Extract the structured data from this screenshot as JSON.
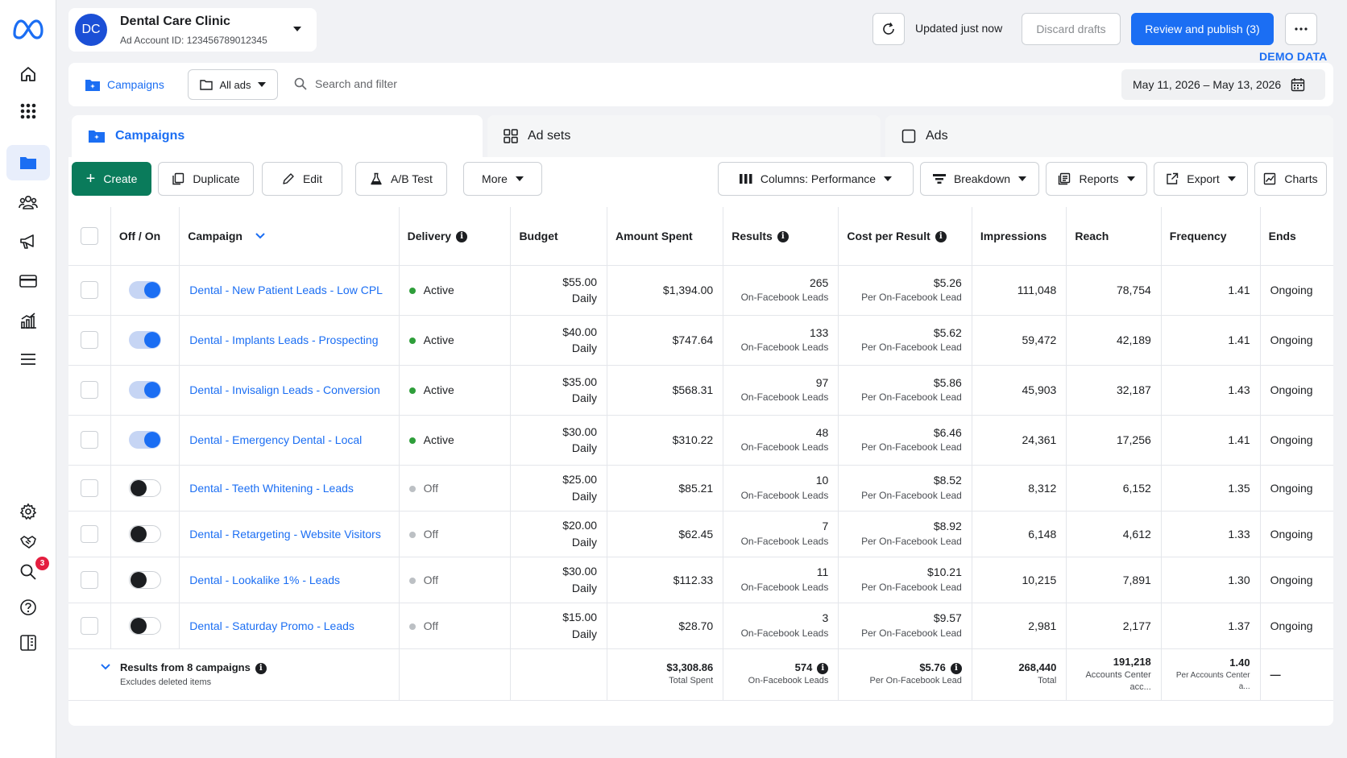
{
  "account": {
    "initials": "DC",
    "name": "Dental Care Clinic",
    "id_text": "Ad Account ID: 123456789012345"
  },
  "header": {
    "updated": "Updated just now",
    "discard": "Discard drafts",
    "publish": "Review and publish (3)",
    "demo": "DEMO DATA"
  },
  "filterbar": {
    "campaigns": "Campaigns",
    "all_ads": "All ads",
    "search_placeholder": "Search and filter",
    "date_range": "May 11, 2026 – May 13, 2026"
  },
  "tabs": {
    "campaigns": "Campaigns",
    "adsets": "Ad sets",
    "ads": "Ads"
  },
  "toolbar": {
    "create": "Create",
    "duplicate": "Duplicate",
    "edit": "Edit",
    "ab_test": "A/B Test",
    "more": "More",
    "columns": "Columns: Performance",
    "breakdown": "Breakdown",
    "reports": "Reports",
    "export": "Export",
    "charts": "Charts"
  },
  "columns": {
    "offon": "Off / On",
    "campaign": "Campaign",
    "delivery": "Delivery",
    "budget": "Budget",
    "spent": "Amount Spent",
    "results": "Results",
    "cpr": "Cost per Result",
    "impressions": "Impressions",
    "reach": "Reach",
    "frequency": "Frequency",
    "ends": "Ends"
  },
  "colors": {
    "accent": "#1b6ef3",
    "create": "#0a7b5b",
    "active_dot": "#2e9e3a",
    "off_dot": "#bcc0c4"
  },
  "rows": [
    {
      "on": true,
      "name": "Dental - New Patient Leads - Low CPL",
      "delivery": "Active",
      "budget": "$55.00",
      "budget_sub": "Daily",
      "spent": "$1,394.00",
      "results": "265",
      "results_sub": "On-Facebook Leads",
      "cpr": "$5.26",
      "cpr_sub": "Per On-Facebook Lead",
      "impressions": "111,048",
      "reach": "78,754",
      "frequency": "1.41",
      "ends": "Ongoing"
    },
    {
      "on": true,
      "name": "Dental - Implants Leads - Prospecting",
      "delivery": "Active",
      "budget": "$40.00",
      "budget_sub": "Daily",
      "spent": "$747.64",
      "results": "133",
      "results_sub": "On-Facebook Leads",
      "cpr": "$5.62",
      "cpr_sub": "Per On-Facebook Lead",
      "impressions": "59,472",
      "reach": "42,189",
      "frequency": "1.41",
      "ends": "Ongoing"
    },
    {
      "on": true,
      "name": "Dental - Invisalign Leads - Conversion",
      "delivery": "Active",
      "budget": "$35.00",
      "budget_sub": "Daily",
      "spent": "$568.31",
      "results": "97",
      "results_sub": "On-Facebook Leads",
      "cpr": "$5.86",
      "cpr_sub": "Per On-Facebook Lead",
      "impressions": "45,903",
      "reach": "32,187",
      "frequency": "1.43",
      "ends": "Ongoing"
    },
    {
      "on": true,
      "name": "Dental - Emergency Dental - Local",
      "delivery": "Active",
      "budget": "$30.00",
      "budget_sub": "Daily",
      "spent": "$310.22",
      "results": "48",
      "results_sub": "On-Facebook Leads",
      "cpr": "$6.46",
      "cpr_sub": "Per On-Facebook Lead",
      "impressions": "24,361",
      "reach": "17,256",
      "frequency": "1.41",
      "ends": "Ongoing"
    },
    {
      "on": false,
      "name": "Dental - Teeth Whitening - Leads",
      "delivery": "Off",
      "budget": "$25.00",
      "budget_sub": "Daily",
      "spent": "$85.21",
      "results": "10",
      "results_sub": "On-Facebook Leads",
      "cpr": "$8.52",
      "cpr_sub": "Per On-Facebook Lead",
      "impressions": "8,312",
      "reach": "6,152",
      "frequency": "1.35",
      "ends": "Ongoing"
    },
    {
      "on": false,
      "name": "Dental - Retargeting - Website Visitors",
      "delivery": "Off",
      "budget": "$20.00",
      "budget_sub": "Daily",
      "spent": "$62.45",
      "results": "7",
      "results_sub": "On-Facebook Leads",
      "cpr": "$8.92",
      "cpr_sub": "Per On-Facebook Lead",
      "impressions": "6,148",
      "reach": "4,612",
      "frequency": "1.33",
      "ends": "Ongoing"
    },
    {
      "on": false,
      "name": "Dental - Lookalike 1% - Leads",
      "delivery": "Off",
      "budget": "$30.00",
      "budget_sub": "Daily",
      "spent": "$112.33",
      "results": "11",
      "results_sub": "On-Facebook Leads",
      "cpr": "$10.21",
      "cpr_sub": "Per On-Facebook Lead",
      "impressions": "10,215",
      "reach": "7,891",
      "frequency": "1.30",
      "ends": "Ongoing"
    },
    {
      "on": false,
      "name": "Dental - Saturday Promo - Leads",
      "delivery": "Off",
      "budget": "$15.00",
      "budget_sub": "Daily",
      "spent": "$28.70",
      "results": "3",
      "results_sub": "On-Facebook Leads",
      "cpr": "$9.57",
      "cpr_sub": "Per On-Facebook Lead",
      "impressions": "2,981",
      "reach": "2,177",
      "frequency": "1.37",
      "ends": "Ongoing"
    }
  ],
  "totals": {
    "label": "Results from 8 campaigns",
    "label_sub": "Excludes deleted items",
    "spent": "$3,308.86",
    "spent_sub": "Total Spent",
    "results": "574",
    "results_sub": "On-Facebook Leads",
    "cpr": "$5.76",
    "cpr_sub": "Per On-Facebook Lead",
    "impressions": "268,440",
    "impressions_sub": "Total",
    "reach": "191,218",
    "reach_sub": "Accounts Center acc...",
    "frequency": "1.40",
    "frequency_sub": "Per Accounts Center a...",
    "ends": "—"
  },
  "notifications": {
    "count": "3"
  }
}
